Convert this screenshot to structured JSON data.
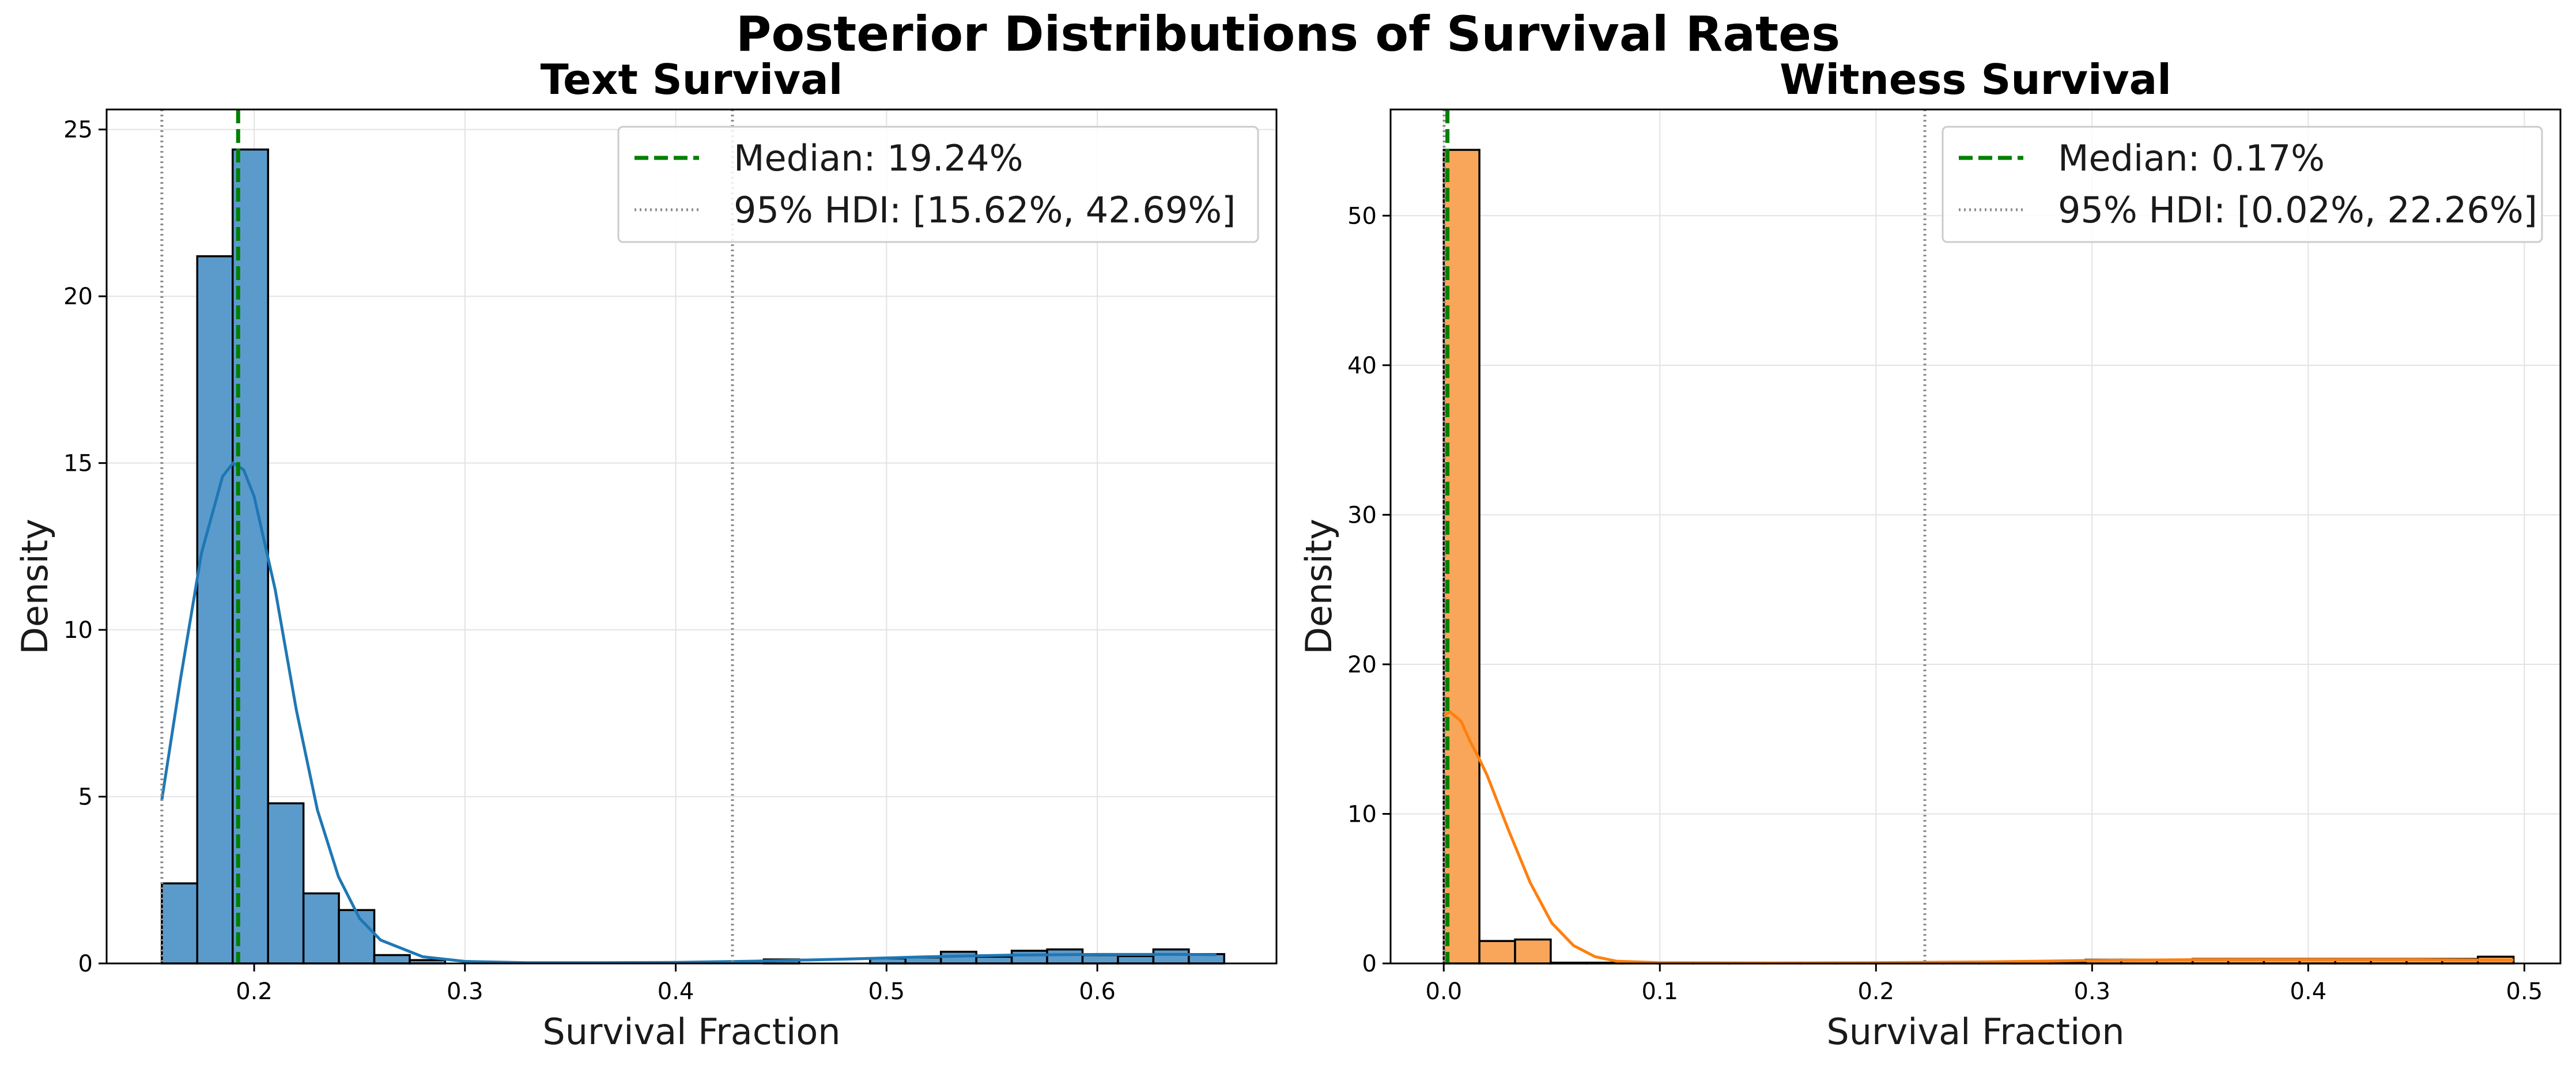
{
  "figure": {
    "suptitle": "Posterior Distributions of Survival Rates"
  },
  "chart_data": [
    {
      "type": "bar",
      "subtype": "histogram_with_kde",
      "title": "Text Survival",
      "xlabel": "Survival Fraction",
      "ylabel": "Density",
      "xlim": [
        0.13,
        0.685
      ],
      "ylim": [
        0,
        25.6
      ],
      "xticks": [
        0.2,
        0.3,
        0.4,
        0.5,
        0.6
      ],
      "xtick_labels": [
        "0.2",
        "0.3",
        "0.4",
        "0.5",
        "0.6"
      ],
      "yticks": [
        0,
        5,
        10,
        15,
        20,
        25
      ],
      "ytick_labels": [
        "0",
        "5",
        "10",
        "15",
        "20",
        "25"
      ],
      "grid": true,
      "bar_color": "#5b9bcc",
      "kde_color": "#1f77b4",
      "bins": {
        "start": 0.1562,
        "width": 0.0168,
        "heights": [
          2.4,
          21.2,
          24.4,
          4.8,
          2.1,
          1.6,
          0.25,
          0.1,
          0.0,
          0.0,
          0.0,
          0.0,
          0.0,
          0.0,
          0.0,
          0.0,
          0.0,
          0.12,
          0.0,
          0.0,
          0.15,
          0.18,
          0.35,
          0.2,
          0.38,
          0.42,
          0.25,
          0.22,
          0.42,
          0.28
        ]
      },
      "kde": {
        "x": [
          0.1562,
          0.165,
          0.175,
          0.185,
          0.19,
          0.195,
          0.2,
          0.21,
          0.22,
          0.23,
          0.24,
          0.25,
          0.26,
          0.28,
          0.3,
          0.33,
          0.36,
          0.4,
          0.44,
          0.48,
          0.52,
          0.56,
          0.6,
          0.64,
          0.6565
        ],
        "y": [
          4.9,
          8.5,
          12.3,
          14.6,
          15.0,
          14.8,
          14.0,
          11.2,
          7.6,
          4.6,
          2.6,
          1.35,
          0.7,
          0.2,
          0.06,
          0.02,
          0.02,
          0.03,
          0.07,
          0.13,
          0.2,
          0.25,
          0.27,
          0.27,
          0.26
        ]
      },
      "median": 0.1924,
      "hdi": [
        0.1562,
        0.4269
      ],
      "legend": {
        "position": "upper right",
        "entries": [
          {
            "label": "Median: 19.24%",
            "style": "dashed",
            "color": "#008000"
          },
          {
            "label": "95% HDI: [15.62%, 42.69%]",
            "style": "dotted",
            "color": "#8c8c8c"
          }
        ]
      }
    },
    {
      "type": "bar",
      "subtype": "histogram_with_kde",
      "title": "Witness Survival",
      "xlabel": "Survival Fraction",
      "ylabel": "Density",
      "xlim": [
        -0.0246,
        0.5167
      ],
      "ylim": [
        0,
        57.1
      ],
      "xticks": [
        0.0,
        0.1,
        0.2,
        0.3,
        0.4,
        0.5
      ],
      "xtick_labels": [
        "0.0",
        "0.1",
        "0.2",
        "0.3",
        "0.4",
        "0.5"
      ],
      "yticks": [
        0,
        10,
        20,
        30,
        40,
        50
      ],
      "ytick_labels": [
        "0",
        "10",
        "20",
        "30",
        "40",
        "50"
      ],
      "grid": true,
      "bar_color": "#f9a65a",
      "kde_color": "#ff7f0e",
      "bins": {
        "start": 0.0,
        "width": 0.0165,
        "heights": [
          54.4,
          1.5,
          1.6,
          0.05,
          0.05,
          0.05,
          0.05,
          0.05,
          0.05,
          0.05,
          0.05,
          0.05,
          0.05,
          0.05,
          0.05,
          0.05,
          0.05,
          0.05,
          0.25,
          0.25,
          0.25,
          0.3,
          0.3,
          0.3,
          0.3,
          0.3,
          0.3,
          0.3,
          0.3,
          0.45
        ]
      },
      "kde": {
        "x": [
          0.0,
          0.003,
          0.008,
          0.012,
          0.016,
          0.02,
          0.03,
          0.04,
          0.05,
          0.06,
          0.07,
          0.08,
          0.1,
          0.15,
          0.2,
          0.25,
          0.3,
          0.35,
          0.4,
          0.45,
          0.495
        ],
        "y": [
          16.6,
          16.8,
          16.2,
          14.9,
          13.8,
          12.6,
          8.9,
          5.4,
          2.7,
          1.2,
          0.45,
          0.15,
          0.05,
          0.03,
          0.05,
          0.1,
          0.2,
          0.25,
          0.25,
          0.25,
          0.22
        ]
      },
      "median": 0.0017,
      "hdi": [
        0.0002,
        0.2226
      ],
      "legend": {
        "position": "upper right",
        "entries": [
          {
            "label": "Median: 0.17%",
            "style": "dashed",
            "color": "#008000"
          },
          {
            "label": "95% HDI: [0.02%, 22.26%]",
            "style": "dotted",
            "color": "#8c8c8c"
          }
        ]
      }
    }
  ]
}
